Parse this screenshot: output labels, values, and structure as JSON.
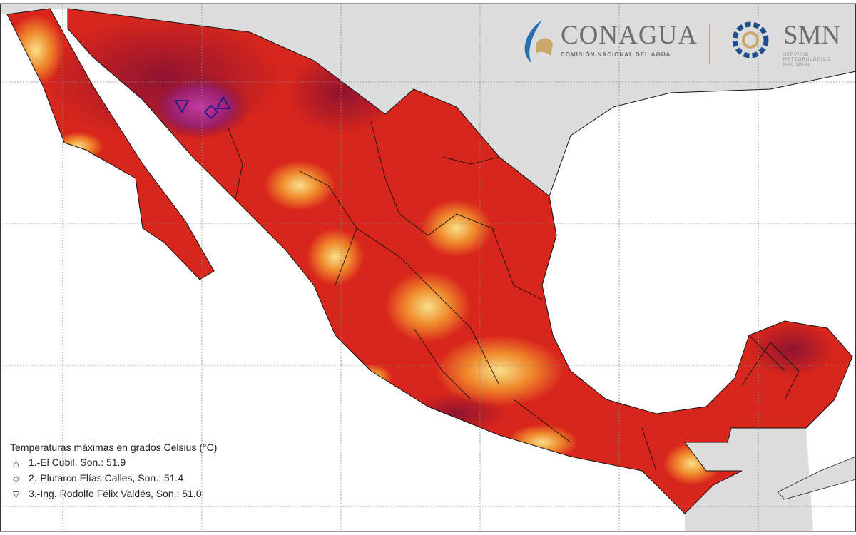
{
  "logos": {
    "conagua_name": "CONAGUA",
    "conagua_subtitle": "COMISIÓN NACIONAL DEL AGUA",
    "smn_name": "SMN",
    "smn_subtitle": "SERVICIO METEOROLÓGICO NACIONAL"
  },
  "legend": {
    "title": "Temperaturas máximas en grados Celsius (°C)",
    "items": [
      {
        "symbol": "△",
        "label": "1.-El Cubil, Son.: 51.9"
      },
      {
        "symbol": "◇",
        "label": "2.-Plutarco Elías Calles, Son.: 51.4"
      },
      {
        "symbol": "▽",
        "label": "3.-Ing. Rodolfo Félix Valdés, Son.: 51.0"
      }
    ]
  },
  "colors": {
    "land_other": "#dcdcdc",
    "water": "#ffffff",
    "heat_low": "#f7e08a",
    "heat_mid": "#f08a2c",
    "heat_high": "#d9261c",
    "heat_very_high": "#8e1330",
    "heat_extreme": "#c23aa0",
    "marker": "#1a1a8c"
  }
}
